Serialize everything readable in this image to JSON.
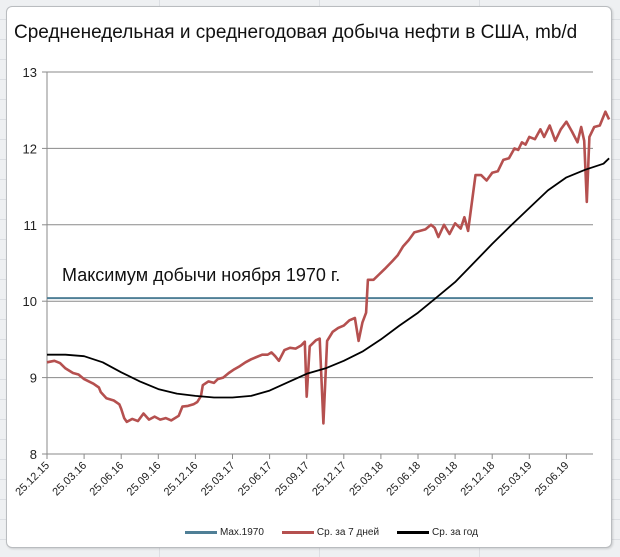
{
  "chart": {
    "title": "Средненедельная и среднегодовая добыча нефти в США, mb/d",
    "annotation": "Максимум добычи ноября 1970 г.",
    "legend": [
      {
        "label": "Max.1970",
        "color": "#4f7f96"
      },
      {
        "label": "Ср. за 7 дней",
        "color": "#b5504f"
      },
      {
        "label": "Ср. за год",
        "color": "#000000"
      }
    ],
    "y_ticks": [
      "8",
      "9",
      "10",
      "11",
      "12",
      "13"
    ],
    "x_ticks": [
      "25.12.15",
      "25.03.16",
      "25.06.16",
      "25.09.16",
      "25.12.16",
      "25.03.17",
      "25.06.17",
      "25.09.17",
      "25.12.17",
      "25.03.18",
      "25.06.18",
      "25.09.18",
      "25.12.18",
      "25.03.19",
      "25.06.19"
    ]
  },
  "chart_data": {
    "type": "line",
    "title": "Средненедельная и среднегодовая добыча нефти в США, mb/d",
    "xlabel": "",
    "ylabel": "mb/d",
    "ylim": [
      8,
      13
    ],
    "grid": true,
    "legend_position": "bottom",
    "categories": [
      "25.12.15",
      "25.03.16",
      "25.06.16",
      "25.09.16",
      "25.12.16",
      "25.03.17",
      "25.06.17",
      "25.09.17",
      "25.12.17",
      "25.03.18",
      "25.06.18",
      "25.09.18",
      "25.12.18",
      "25.03.19",
      "25.06.19"
    ],
    "annotations": [
      {
        "text": "Максимум добычи ноября 1970 г.",
        "y": 10.04
      }
    ],
    "series": [
      {
        "name": "Max.1970",
        "color": "#4f7f96",
        "constant": 10.04
      },
      {
        "name": "Ср. за 7 дней",
        "color": "#b5504f",
        "points": [
          [
            0,
            9.2
          ],
          [
            0.2,
            9.22
          ],
          [
            0.35,
            9.19
          ],
          [
            0.5,
            9.12
          ],
          [
            0.7,
            9.06
          ],
          [
            0.85,
            9.04
          ],
          [
            1.0,
            8.98
          ],
          [
            1.25,
            8.92
          ],
          [
            1.4,
            8.87
          ],
          [
            1.45,
            8.81
          ],
          [
            1.6,
            8.73
          ],
          [
            1.8,
            8.7
          ],
          [
            1.95,
            8.65
          ],
          [
            2.0,
            8.59
          ],
          [
            2.08,
            8.47
          ],
          [
            2.15,
            8.42
          ],
          [
            2.3,
            8.46
          ],
          [
            2.45,
            8.43
          ],
          [
            2.6,
            8.53
          ],
          [
            2.75,
            8.45
          ],
          [
            2.9,
            8.49
          ],
          [
            3.05,
            8.45
          ],
          [
            3.2,
            8.47
          ],
          [
            3.35,
            8.44
          ],
          [
            3.55,
            8.5
          ],
          [
            3.65,
            8.62
          ],
          [
            3.8,
            8.63
          ],
          [
            3.95,
            8.65
          ],
          [
            4.05,
            8.68
          ],
          [
            4.15,
            8.76
          ],
          [
            4.2,
            8.9
          ],
          [
            4.35,
            8.95
          ],
          [
            4.5,
            8.93
          ],
          [
            4.6,
            8.98
          ],
          [
            4.75,
            9.0
          ],
          [
            4.9,
            9.06
          ],
          [
            5.05,
            9.11
          ],
          [
            5.2,
            9.15
          ],
          [
            5.35,
            9.2
          ],
          [
            5.5,
            9.24
          ],
          [
            5.65,
            9.27
          ],
          [
            5.8,
            9.3
          ],
          [
            5.95,
            9.3
          ],
          [
            6.05,
            9.33
          ],
          [
            6.15,
            9.28
          ],
          [
            6.25,
            9.22
          ],
          [
            6.4,
            9.36
          ],
          [
            6.55,
            9.39
          ],
          [
            6.7,
            9.38
          ],
          [
            6.85,
            9.42
          ],
          [
            6.95,
            9.47
          ],
          [
            7.0,
            8.75
          ],
          [
            7.08,
            9.41
          ],
          [
            7.25,
            9.49
          ],
          [
            7.35,
            9.51
          ],
          [
            7.45,
            8.4
          ],
          [
            7.55,
            9.48
          ],
          [
            7.7,
            9.6
          ],
          [
            7.85,
            9.65
          ],
          [
            8.0,
            9.68
          ],
          [
            8.15,
            9.75
          ],
          [
            8.3,
            9.78
          ],
          [
            8.4,
            9.48
          ],
          [
            8.5,
            9.72
          ],
          [
            8.6,
            9.85
          ],
          [
            8.65,
            10.28
          ],
          [
            8.8,
            10.28
          ],
          [
            8.95,
            10.35
          ],
          [
            9.1,
            10.42
          ],
          [
            9.3,
            10.52
          ],
          [
            9.45,
            10.6
          ],
          [
            9.6,
            10.72
          ],
          [
            9.75,
            10.8
          ],
          [
            9.9,
            10.9
          ],
          [
            10.05,
            10.92
          ],
          [
            10.2,
            10.94
          ],
          [
            10.35,
            11.0
          ],
          [
            10.45,
            10.96
          ],
          [
            10.55,
            10.84
          ],
          [
            10.7,
            11.0
          ],
          [
            10.85,
            10.88
          ],
          [
            11.0,
            11.02
          ],
          [
            11.15,
            10.95
          ],
          [
            11.25,
            11.1
          ],
          [
            11.35,
            10.92
          ],
          [
            11.55,
            11.65
          ],
          [
            11.7,
            11.65
          ],
          [
            11.85,
            11.58
          ],
          [
            12.0,
            11.68
          ],
          [
            12.15,
            11.7
          ],
          [
            12.3,
            11.85
          ],
          [
            12.45,
            11.87
          ],
          [
            12.6,
            12.0
          ],
          [
            12.7,
            11.98
          ],
          [
            12.8,
            12.08
          ],
          [
            12.9,
            12.05
          ],
          [
            13.0,
            12.15
          ],
          [
            13.15,
            12.12
          ],
          [
            13.3,
            12.25
          ],
          [
            13.4,
            12.15
          ],
          [
            13.55,
            12.3
          ],
          [
            13.7,
            12.1
          ],
          [
            13.85,
            12.25
          ],
          [
            14.0,
            12.35
          ],
          [
            14.15,
            12.22
          ],
          [
            14.3,
            12.08
          ],
          [
            14.4,
            12.28
          ],
          [
            14.48,
            12.1
          ],
          [
            14.55,
            11.3
          ],
          [
            14.62,
            12.15
          ],
          [
            14.75,
            12.28
          ],
          [
            14.9,
            12.3
          ],
          [
            15.05,
            12.48
          ],
          [
            15.15,
            12.38
          ]
        ]
      },
      {
        "name": "Ср. за год",
        "color": "#000000",
        "points": [
          [
            0,
            9.3
          ],
          [
            0.5,
            9.3
          ],
          [
            1.0,
            9.28
          ],
          [
            1.5,
            9.2
          ],
          [
            2.0,
            9.07
          ],
          [
            2.5,
            8.95
          ],
          [
            3.0,
            8.85
          ],
          [
            3.5,
            8.79
          ],
          [
            4.0,
            8.76
          ],
          [
            4.5,
            8.74
          ],
          [
            5.0,
            8.74
          ],
          [
            5.5,
            8.76
          ],
          [
            6.0,
            8.83
          ],
          [
            6.5,
            8.94
          ],
          [
            7.0,
            9.05
          ],
          [
            7.5,
            9.12
          ],
          [
            8.0,
            9.22
          ],
          [
            8.5,
            9.34
          ],
          [
            9.0,
            9.5
          ],
          [
            9.5,
            9.68
          ],
          [
            10.0,
            9.85
          ],
          [
            10.5,
            10.05
          ],
          [
            11.0,
            10.25
          ],
          [
            11.5,
            10.5
          ],
          [
            12.0,
            10.75
          ],
          [
            12.5,
            10.99
          ],
          [
            13.0,
            11.22
          ],
          [
            13.5,
            11.45
          ],
          [
            14.0,
            11.62
          ],
          [
            14.5,
            11.72
          ],
          [
            15.0,
            11.8
          ],
          [
            15.15,
            11.87
          ]
        ]
      }
    ]
  }
}
